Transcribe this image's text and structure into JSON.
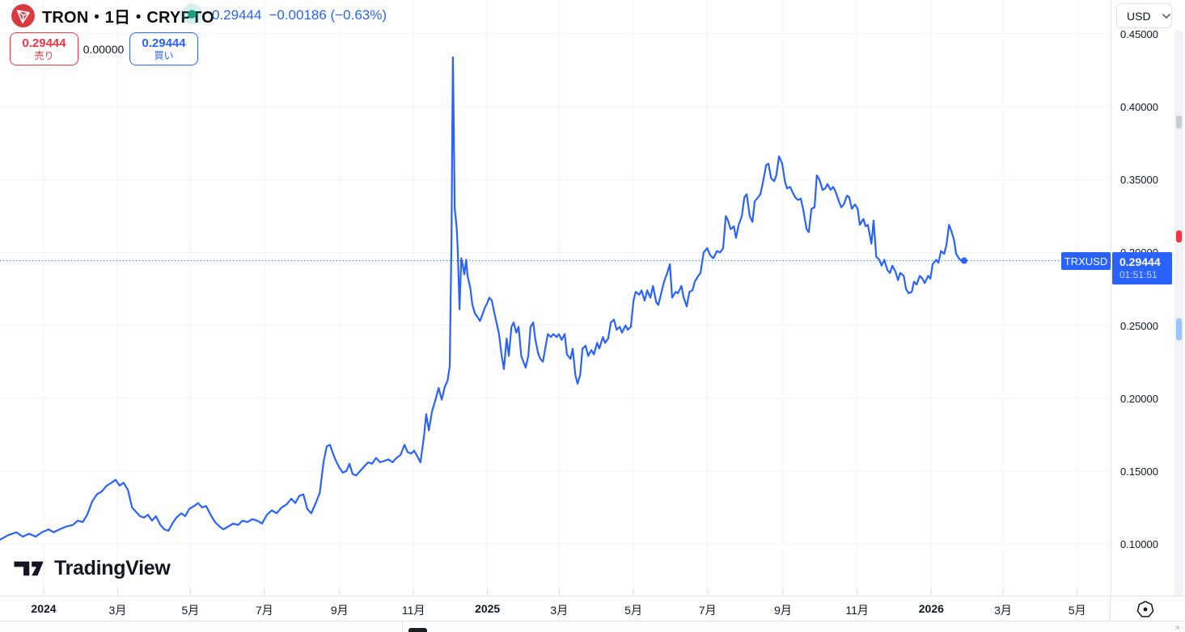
{
  "header": {
    "symbol_title": "TRON・1日・CRYPTO",
    "last_price": "0.29444",
    "change": "−0.00186 (−0.63%)",
    "sell": {
      "price": "0.29444",
      "label": "売り"
    },
    "spread": "0.00000",
    "buy": {
      "price": "0.29444",
      "label": "買い"
    }
  },
  "price_scale": {
    "currency": "USD"
  },
  "price_label": {
    "symbol": "TRXUSD",
    "price": "0.29444",
    "countdown": "01:51:51"
  },
  "watermark": "TradingView",
  "colors": {
    "accent_blue": "#2962FF",
    "sell_red": "#F23645",
    "status_green": "#22ab94",
    "status_green_halo": "rgba(34,171,148,0.18)",
    "tron_red": "#d93a40",
    "text": "#131722",
    "grid": "#f0f3fa",
    "border": "#e0e3eb"
  },
  "chart_data": {
    "type": "line",
    "symbol": "TRXUSD",
    "title": "TRON・1日・CRYPTO",
    "timeframe": "1日",
    "exchange": "CRYPTO",
    "currency": "USD",
    "line_color": "#2962FF",
    "grid": true,
    "legend_position": "none",
    "last_price": 0.29444,
    "change": -0.00186,
    "change_pct": -0.63,
    "countdown": "01:51:51",
    "xlim": [
      2023.9016,
      2026.404
    ],
    "ylim": [
      0.0645,
      0.4733
    ],
    "xlabel": "",
    "ylabel": "",
    "y_ticks": [
      {
        "v": 0.45,
        "label": "0.45000"
      },
      {
        "v": 0.4,
        "label": "0.40000"
      },
      {
        "v": 0.35,
        "label": "0.35000"
      },
      {
        "v": 0.3,
        "label": "0.30000"
      },
      {
        "v": 0.25,
        "label": "0.25000"
      },
      {
        "v": 0.2,
        "label": "0.20000"
      },
      {
        "v": 0.15,
        "label": "0.15000"
      },
      {
        "v": 0.1,
        "label": "0.10000"
      }
    ],
    "x_ticks": [
      {
        "v": 2024.0,
        "label": "2024",
        "bold": true
      },
      {
        "v": 2024.1667,
        "label": "3月",
        "bold": false
      },
      {
        "v": 2024.3306,
        "label": "5月",
        "bold": false
      },
      {
        "v": 2024.4973,
        "label": "7月",
        "bold": false
      },
      {
        "v": 2024.6667,
        "label": "9月",
        "bold": false
      },
      {
        "v": 2024.8333,
        "label": "11月",
        "bold": false
      },
      {
        "v": 2025.0,
        "label": "2025",
        "bold": true
      },
      {
        "v": 2025.1616,
        "label": "3月",
        "bold": false
      },
      {
        "v": 2025.3288,
        "label": "5月",
        "bold": false
      },
      {
        "v": 2025.4959,
        "label": "7月",
        "bold": false
      },
      {
        "v": 2025.6658,
        "label": "9月",
        "bold": false
      },
      {
        "v": 2025.8329,
        "label": "11月",
        "bold": false
      },
      {
        "v": 2026.0,
        "label": "2026",
        "bold": true
      },
      {
        "v": 2026.1616,
        "label": "3月",
        "bold": false
      },
      {
        "v": 2026.3288,
        "label": "5月",
        "bold": false
      }
    ],
    "scale_markers": [
      {
        "color": "#c9ccd2",
        "price_from": 0.394,
        "price_to": 0.385
      },
      {
        "color": "#f23645",
        "price_from": 0.315,
        "price_to": 0.307
      },
      {
        "color": "#9ec2fb",
        "price_from": 0.255,
        "price_to": 0.24
      }
    ],
    "points": [
      [
        2023.902,
        0.103
      ],
      [
        2023.92,
        0.106
      ],
      [
        2023.938,
        0.108
      ],
      [
        2023.953,
        0.105
      ],
      [
        2023.967,
        0.107
      ],
      [
        2023.982,
        0.105
      ],
      [
        2023.996,
        0.108
      ],
      [
        2024.011,
        0.11
      ],
      [
        2024.022,
        0.108
      ],
      [
        2024.036,
        0.11
      ],
      [
        2024.051,
        0.112
      ],
      [
        2024.066,
        0.113
      ],
      [
        2024.077,
        0.116
      ],
      [
        2024.088,
        0.115
      ],
      [
        2024.098,
        0.12
      ],
      [
        2024.109,
        0.129
      ],
      [
        2024.12,
        0.134
      ],
      [
        2024.131,
        0.136
      ],
      [
        2024.142,
        0.14
      ],
      [
        2024.153,
        0.142
      ],
      [
        2024.162,
        0.144
      ],
      [
        2024.171,
        0.14
      ],
      [
        2024.18,
        0.142
      ],
      [
        2024.19,
        0.137
      ],
      [
        2024.199,
        0.125
      ],
      [
        2024.208,
        0.122
      ],
      [
        2024.217,
        0.119
      ],
      [
        2024.226,
        0.118
      ],
      [
        2024.235,
        0.12
      ],
      [
        2024.244,
        0.116
      ],
      [
        2024.253,
        0.119
      ],
      [
        2024.263,
        0.113
      ],
      [
        2024.272,
        0.11
      ],
      [
        2024.281,
        0.109
      ],
      [
        2024.29,
        0.114
      ],
      [
        2024.299,
        0.118
      ],
      [
        2024.31,
        0.121
      ],
      [
        2024.319,
        0.119
      ],
      [
        2024.328,
        0.124
      ],
      [
        2024.339,
        0.126
      ],
      [
        2024.348,
        0.128
      ],
      [
        2024.357,
        0.125
      ],
      [
        2024.366,
        0.126
      ],
      [
        2024.376,
        0.12
      ],
      [
        2024.386,
        0.115
      ],
      [
        2024.396,
        0.112
      ],
      [
        2024.405,
        0.11
      ],
      [
        2024.416,
        0.112
      ],
      [
        2024.427,
        0.114
      ],
      [
        2024.438,
        0.113
      ],
      [
        2024.448,
        0.116
      ],
      [
        2024.459,
        0.115
      ],
      [
        2024.47,
        0.117
      ],
      [
        2024.481,
        0.116
      ],
      [
        2024.492,
        0.114
      ],
      [
        2024.503,
        0.12
      ],
      [
        2024.514,
        0.123
      ],
      [
        2024.525,
        0.121
      ],
      [
        2024.536,
        0.125
      ],
      [
        2024.547,
        0.127
      ],
      [
        2024.558,
        0.131
      ],
      [
        2024.567,
        0.128
      ],
      [
        2024.576,
        0.133
      ],
      [
        2024.585,
        0.134
      ],
      [
        2024.594,
        0.124
      ],
      [
        2024.603,
        0.121
      ],
      [
        2024.613,
        0.128
      ],
      [
        2024.622,
        0.135
      ],
      [
        2024.631,
        0.157
      ],
      [
        2024.638,
        0.167
      ],
      [
        2024.645,
        0.168
      ],
      [
        2024.653,
        0.161
      ],
      [
        2024.66,
        0.156
      ],
      [
        2024.667,
        0.152
      ],
      [
        2024.674,
        0.149
      ],
      [
        2024.682,
        0.15
      ],
      [
        2024.689,
        0.155
      ],
      [
        2024.696,
        0.148
      ],
      [
        2024.704,
        0.147
      ],
      [
        2024.713,
        0.15
      ],
      [
        2024.722,
        0.153
      ],
      [
        2024.731,
        0.156
      ],
      [
        2024.74,
        0.155
      ],
      [
        2024.749,
        0.159
      ],
      [
        2024.758,
        0.156
      ],
      [
        2024.768,
        0.157
      ],
      [
        2024.777,
        0.158
      ],
      [
        2024.786,
        0.156
      ],
      [
        2024.795,
        0.159
      ],
      [
        2024.804,
        0.161
      ],
      [
        2024.813,
        0.168
      ],
      [
        2024.82,
        0.163
      ],
      [
        2024.828,
        0.162
      ],
      [
        2024.835,
        0.164
      ],
      [
        2024.842,
        0.16
      ],
      [
        2024.849,
        0.156
      ],
      [
        2024.857,
        0.174
      ],
      [
        2024.862,
        0.189
      ],
      [
        2024.868,
        0.178
      ],
      [
        2024.875,
        0.191
      ],
      [
        2024.882,
        0.198
      ],
      [
        2024.89,
        0.207
      ],
      [
        2024.897,
        0.199
      ],
      [
        2024.904,
        0.208
      ],
      [
        2024.91,
        0.212
      ],
      [
        2024.915,
        0.222
      ],
      [
        2024.919,
        0.311
      ],
      [
        2024.921,
        0.394
      ],
      [
        2024.922,
        0.434
      ],
      [
        2024.924,
        0.388
      ],
      [
        2024.926,
        0.33
      ],
      [
        2024.928,
        0.325
      ],
      [
        2024.931,
        0.315
      ],
      [
        2024.933,
        0.302
      ],
      [
        2024.937,
        0.261
      ],
      [
        2024.941,
        0.296
      ],
      [
        2024.944,
        0.292
      ],
      [
        2024.948,
        0.285
      ],
      [
        2024.952,
        0.295
      ],
      [
        2024.955,
        0.284
      ],
      [
        2024.961,
        0.276
      ],
      [
        2024.966,
        0.264
      ],
      [
        2024.972,
        0.258
      ],
      [
        2024.977,
        0.256
      ],
      [
        2024.983,
        0.253
      ],
      [
        2024.988,
        0.257
      ],
      [
        2024.994,
        0.262
      ],
      [
        2024.999,
        0.265
      ],
      [
        2025.004,
        0.269
      ],
      [
        2025.01,
        0.267
      ],
      [
        2025.015,
        0.259
      ],
      [
        2025.021,
        0.251
      ],
      [
        2025.026,
        0.244
      ],
      [
        2025.032,
        0.229
      ],
      [
        2025.037,
        0.22
      ],
      [
        2025.043,
        0.241
      ],
      [
        2025.048,
        0.229
      ],
      [
        2025.054,
        0.249
      ],
      [
        2025.059,
        0.252
      ],
      [
        2025.065,
        0.245
      ],
      [
        2025.07,
        0.249
      ],
      [
        2025.076,
        0.229
      ],
      [
        2025.081,
        0.225
      ],
      [
        2025.086,
        0.221
      ],
      [
        2025.092,
        0.229
      ],
      [
        2025.097,
        0.249
      ],
      [
        2025.103,
        0.252
      ],
      [
        2025.108,
        0.24
      ],
      [
        2025.114,
        0.231
      ],
      [
        2025.119,
        0.227
      ],
      [
        2025.125,
        0.225
      ],
      [
        2025.13,
        0.234
      ],
      [
        2025.136,
        0.244
      ],
      [
        2025.143,
        0.242
      ],
      [
        2025.148,
        0.244
      ],
      [
        2025.156,
        0.242
      ],
      [
        2025.161,
        0.244
      ],
      [
        2025.167,
        0.24
      ],
      [
        2025.174,
        0.244
      ],
      [
        2025.179,
        0.23
      ],
      [
        2025.187,
        0.227
      ],
      [
        2025.192,
        0.234
      ],
      [
        2025.198,
        0.216
      ],
      [
        2025.203,
        0.21
      ],
      [
        2025.209,
        0.216
      ],
      [
        2025.214,
        0.234
      ],
      [
        2025.221,
        0.236
      ],
      [
        2025.227,
        0.229
      ],
      [
        2025.234,
        0.233
      ],
      [
        2025.24,
        0.23
      ],
      [
        2025.247,
        0.238
      ],
      [
        2025.252,
        0.234
      ],
      [
        2025.26,
        0.242
      ],
      [
        2025.265,
        0.238
      ],
      [
        2025.272,
        0.241
      ],
      [
        2025.278,
        0.252
      ],
      [
        2025.285,
        0.254
      ],
      [
        2025.291,
        0.247
      ],
      [
        2025.298,
        0.249
      ],
      [
        2025.303,
        0.245
      ],
      [
        2025.311,
        0.25
      ],
      [
        2025.316,
        0.247
      ],
      [
        2025.323,
        0.249
      ],
      [
        2025.329,
        0.267
      ],
      [
        2025.334,
        0.273
      ],
      [
        2025.342,
        0.271
      ],
      [
        2025.347,
        0.274
      ],
      [
        2025.354,
        0.267
      ],
      [
        2025.36,
        0.274
      ],
      [
        2025.367,
        0.269
      ],
      [
        2025.373,
        0.277
      ],
      [
        2025.38,
        0.266
      ],
      [
        2025.385,
        0.264
      ],
      [
        2025.393,
        0.274
      ],
      [
        2025.398,
        0.28
      ],
      [
        2025.405,
        0.286
      ],
      [
        2025.411,
        0.292
      ],
      [
        2025.416,
        0.269
      ],
      [
        2025.424,
        0.273
      ],
      [
        2025.429,
        0.272
      ],
      [
        2025.437,
        0.277
      ],
      [
        2025.442,
        0.269
      ],
      [
        2025.449,
        0.263
      ],
      [
        2025.455,
        0.273
      ],
      [
        2025.462,
        0.274
      ],
      [
        2025.467,
        0.28
      ],
      [
        2025.475,
        0.284
      ],
      [
        2025.48,
        0.286
      ],
      [
        2025.487,
        0.3
      ],
      [
        2025.495,
        0.303
      ],
      [
        2025.502,
        0.298
      ],
      [
        2025.509,
        0.296
      ],
      [
        2025.517,
        0.301
      ],
      [
        2025.524,
        0.3
      ],
      [
        2025.531,
        0.303
      ],
      [
        2025.537,
        0.325
      ],
      [
        2025.542,
        0.322
      ],
      [
        2025.548,
        0.316
      ],
      [
        2025.555,
        0.318
      ],
      [
        2025.56,
        0.31
      ],
      [
        2025.566,
        0.319
      ],
      [
        2025.573,
        0.325
      ],
      [
        2025.579,
        0.338
      ],
      [
        2025.584,
        0.34
      ],
      [
        2025.591,
        0.325
      ],
      [
        2025.597,
        0.321
      ],
      [
        2025.602,
        0.335
      ],
      [
        2025.61,
        0.338
      ],
      [
        2025.615,
        0.34
      ],
      [
        2025.62,
        0.347
      ],
      [
        2025.628,
        0.36
      ],
      [
        2025.633,
        0.361
      ],
      [
        2025.639,
        0.351
      ],
      [
        2025.646,
        0.349
      ],
      [
        2025.651,
        0.353
      ],
      [
        2025.657,
        0.366
      ],
      [
        2025.664,
        0.361
      ],
      [
        2025.67,
        0.349
      ],
      [
        2025.675,
        0.344
      ],
      [
        2025.682,
        0.345
      ],
      [
        2025.688,
        0.341
      ],
      [
        2025.693,
        0.338
      ],
      [
        2025.7,
        0.336
      ],
      [
        2025.706,
        0.337
      ],
      [
        2025.711,
        0.33
      ],
      [
        2025.719,
        0.316
      ],
      [
        2025.724,
        0.314
      ],
      [
        2025.73,
        0.33
      ],
      [
        2025.737,
        0.331
      ],
      [
        2025.742,
        0.353
      ],
      [
        2025.748,
        0.35
      ],
      [
        2025.755,
        0.343
      ],
      [
        2025.761,
        0.344
      ],
      [
        2025.766,
        0.347
      ],
      [
        2025.773,
        0.343
      ],
      [
        2025.779,
        0.345
      ],
      [
        2025.784,
        0.342
      ],
      [
        2025.792,
        0.335
      ],
      [
        2025.797,
        0.331
      ],
      [
        2025.803,
        0.333
      ],
      [
        2025.81,
        0.339
      ],
      [
        2025.815,
        0.338
      ],
      [
        2025.821,
        0.33
      ],
      [
        2025.828,
        0.333
      ],
      [
        2025.834,
        0.33
      ],
      [
        2025.839,
        0.319
      ],
      [
        2025.847,
        0.323
      ],
      [
        2025.852,
        0.318
      ],
      [
        2025.857,
        0.319
      ],
      [
        2025.865,
        0.306
      ],
      [
        2025.87,
        0.322
      ],
      [
        2025.876,
        0.297
      ],
      [
        2025.883,
        0.295
      ],
      [
        2025.888,
        0.291
      ],
      [
        2025.894,
        0.295
      ],
      [
        2025.901,
        0.288
      ],
      [
        2025.907,
        0.286
      ],
      [
        2025.912,
        0.291
      ],
      [
        2025.919,
        0.287
      ],
      [
        2025.925,
        0.281
      ],
      [
        2025.93,
        0.286
      ],
      [
        2025.938,
        0.284
      ],
      [
        2025.943,
        0.275
      ],
      [
        2025.949,
        0.272
      ],
      [
        2025.956,
        0.273
      ],
      [
        2025.961,
        0.28
      ],
      [
        2025.967,
        0.278
      ],
      [
        2025.974,
        0.284
      ],
      [
        2025.98,
        0.282
      ],
      [
        2025.985,
        0.279
      ],
      [
        2025.993,
        0.284
      ],
      [
        2025.998,
        0.282
      ],
      [
        2026.003,
        0.292
      ],
      [
        2026.011,
        0.295
      ],
      [
        2026.016,
        0.293
      ],
      [
        2026.022,
        0.301
      ],
      [
        2026.029,
        0.299
      ],
      [
        2026.034,
        0.305
      ],
      [
        2026.04,
        0.319
      ],
      [
        2026.045,
        0.315
      ],
      [
        2026.051,
        0.309
      ],
      [
        2026.056,
        0.299
      ],
      [
        2026.062,
        0.296
      ],
      [
        2026.067,
        0.2944
      ],
      [
        2026.074,
        0.2944
      ]
    ]
  }
}
